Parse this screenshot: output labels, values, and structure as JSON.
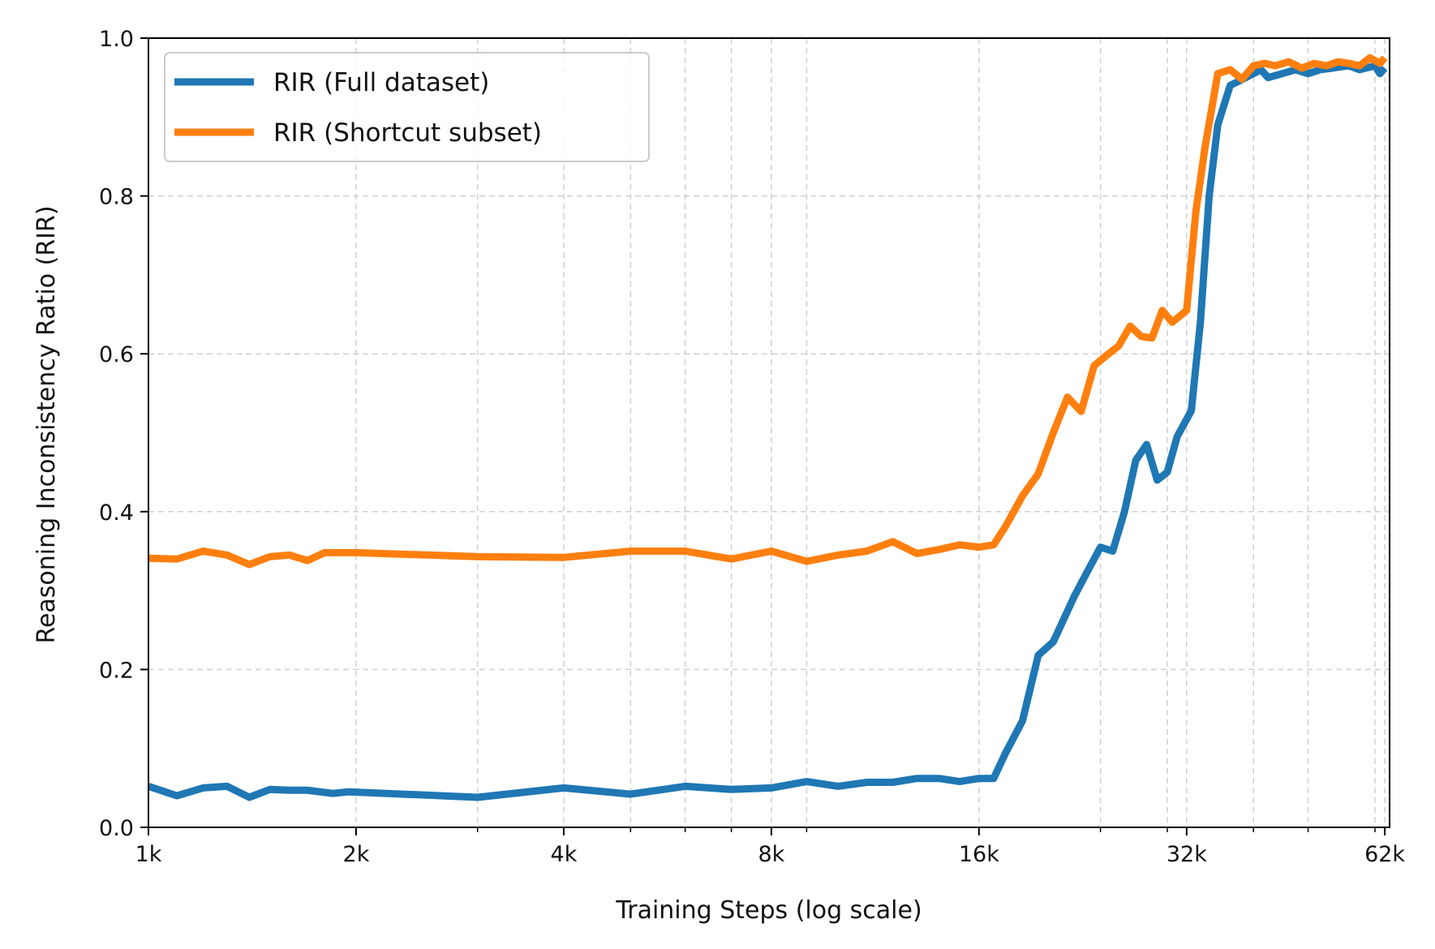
{
  "chart_data": {
    "type": "line",
    "xlabel": "Training Steps (log scale)",
    "ylabel": "Reasoning Inconsistency Ratio (RIR)",
    "x_scale": "log",
    "xlim": [
      1000,
      63000
    ],
    "ylim": [
      0.0,
      1.0
    ],
    "x_ticks": [
      {
        "value": 1000,
        "label": "1k"
      },
      {
        "value": 2000,
        "label": "2k"
      },
      {
        "value": 4000,
        "label": "4k"
      },
      {
        "value": 8000,
        "label": "8k"
      },
      {
        "value": 16000,
        "label": "16k"
      },
      {
        "value": 32000,
        "label": "32k"
      },
      {
        "value": 62000,
        "label": "62k"
      }
    ],
    "y_ticks": [
      {
        "value": 0.0,
        "label": "0.0"
      },
      {
        "value": 0.2,
        "label": "0.2"
      },
      {
        "value": 0.4,
        "label": "0.4"
      },
      {
        "value": 0.6,
        "label": "0.6"
      },
      {
        "value": 0.8,
        "label": "0.8"
      },
      {
        "value": 1.0,
        "label": "1.0"
      }
    ],
    "minor_x_gridlines": [
      3000,
      5000,
      6000,
      7000,
      9000,
      24000,
      30000,
      40000,
      48000,
      60000
    ],
    "grid": true,
    "legend_position": "top-left",
    "series": [
      {
        "name": "RIR (Full dataset)",
        "color": "#1f77b4",
        "points": [
          [
            1000,
            0.052
          ],
          [
            1100,
            0.04
          ],
          [
            1200,
            0.05
          ],
          [
            1300,
            0.052
          ],
          [
            1400,
            0.038
          ],
          [
            1500,
            0.048
          ],
          [
            1600,
            0.047
          ],
          [
            1700,
            0.047
          ],
          [
            1850,
            0.043
          ],
          [
            1950,
            0.045
          ],
          [
            3000,
            0.038
          ],
          [
            4000,
            0.05
          ],
          [
            5000,
            0.042
          ],
          [
            6000,
            0.052
          ],
          [
            7000,
            0.048
          ],
          [
            8000,
            0.05
          ],
          [
            9000,
            0.058
          ],
          [
            10000,
            0.052
          ],
          [
            11000,
            0.057
          ],
          [
            12000,
            0.057
          ],
          [
            13000,
            0.062
          ],
          [
            14000,
            0.062
          ],
          [
            15000,
            0.058
          ],
          [
            16000,
            0.062
          ],
          [
            16800,
            0.062
          ],
          [
            17500,
            0.095
          ],
          [
            18500,
            0.135
          ],
          [
            19500,
            0.218
          ],
          [
            20500,
            0.235
          ],
          [
            22000,
            0.293
          ],
          [
            23000,
            0.325
          ],
          [
            24000,
            0.355
          ],
          [
            25000,
            0.35
          ],
          [
            26000,
            0.4
          ],
          [
            27000,
            0.465
          ],
          [
            28000,
            0.485
          ],
          [
            29000,
            0.44
          ],
          [
            30000,
            0.45
          ],
          [
            31000,
            0.495
          ],
          [
            32500,
            0.528
          ],
          [
            33500,
            0.64
          ],
          [
            34500,
            0.8
          ],
          [
            35500,
            0.89
          ],
          [
            37000,
            0.94
          ],
          [
            38000,
            0.945
          ],
          [
            40000,
            0.955
          ],
          [
            41000,
            0.96
          ],
          [
            42000,
            0.95
          ],
          [
            44000,
            0.955
          ],
          [
            46000,
            0.96
          ],
          [
            48000,
            0.955
          ],
          [
            50000,
            0.96
          ],
          [
            52000,
            0.962
          ],
          [
            55000,
            0.965
          ],
          [
            57000,
            0.96
          ],
          [
            60000,
            0.965
          ],
          [
            61000,
            0.955
          ],
          [
            62000,
            0.962
          ]
        ]
      },
      {
        "name": "RIR (Shortcut subset)",
        "color": "#ff7f0e",
        "points": [
          [
            1000,
            0.341
          ],
          [
            1100,
            0.34
          ],
          [
            1200,
            0.35
          ],
          [
            1300,
            0.345
          ],
          [
            1400,
            0.333
          ],
          [
            1500,
            0.343
          ],
          [
            1600,
            0.345
          ],
          [
            1700,
            0.338
          ],
          [
            1800,
            0.348
          ],
          [
            2000,
            0.348
          ],
          [
            3000,
            0.343
          ],
          [
            4000,
            0.342
          ],
          [
            5000,
            0.35
          ],
          [
            6000,
            0.35
          ],
          [
            7000,
            0.34
          ],
          [
            8000,
            0.35
          ],
          [
            9000,
            0.337
          ],
          [
            10000,
            0.345
          ],
          [
            11000,
            0.35
          ],
          [
            12000,
            0.362
          ],
          [
            13000,
            0.347
          ],
          [
            14000,
            0.352
          ],
          [
            15000,
            0.358
          ],
          [
            16000,
            0.355
          ],
          [
            16800,
            0.358
          ],
          [
            17500,
            0.382
          ],
          [
            18500,
            0.42
          ],
          [
            19500,
            0.448
          ],
          [
            20500,
            0.5
          ],
          [
            21500,
            0.545
          ],
          [
            22500,
            0.527
          ],
          [
            23500,
            0.585
          ],
          [
            24500,
            0.598
          ],
          [
            25500,
            0.61
          ],
          [
            26500,
            0.635
          ],
          [
            27500,
            0.622
          ],
          [
            28500,
            0.62
          ],
          [
            29500,
            0.655
          ],
          [
            30500,
            0.64
          ],
          [
            32000,
            0.655
          ],
          [
            33000,
            0.78
          ],
          [
            34000,
            0.86
          ],
          [
            35500,
            0.955
          ],
          [
            37000,
            0.96
          ],
          [
            38500,
            0.948
          ],
          [
            40000,
            0.965
          ],
          [
            41500,
            0.968
          ],
          [
            43000,
            0.965
          ],
          [
            45000,
            0.97
          ],
          [
            47000,
            0.962
          ],
          [
            49000,
            0.968
          ],
          [
            51000,
            0.965
          ],
          [
            53000,
            0.97
          ],
          [
            55000,
            0.968
          ],
          [
            57000,
            0.965
          ],
          [
            59000,
            0.975
          ],
          [
            61000,
            0.968
          ],
          [
            62000,
            0.975
          ]
        ]
      }
    ]
  }
}
